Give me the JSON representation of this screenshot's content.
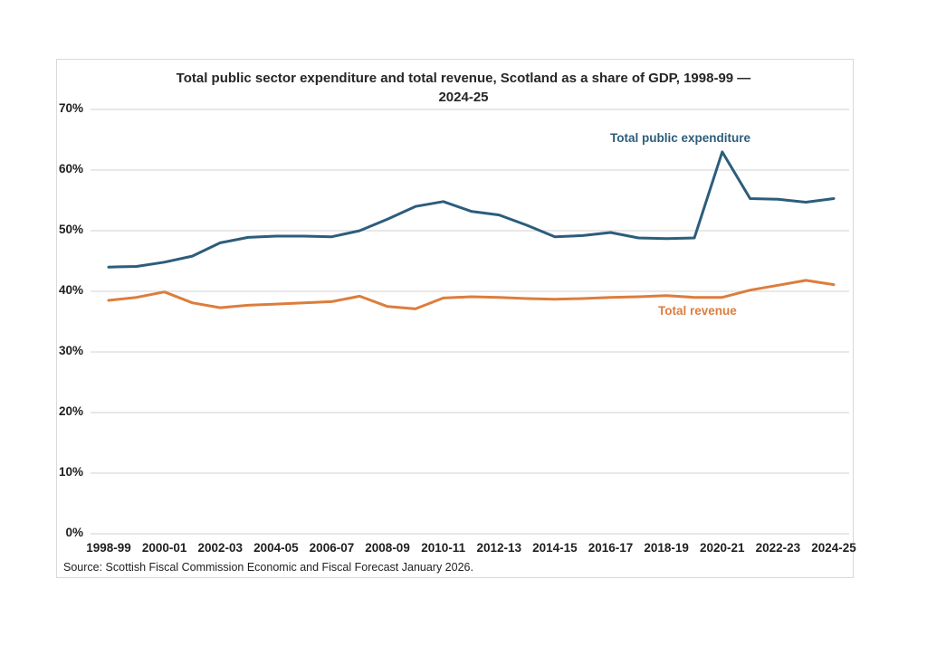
{
  "header": {
    "title_line1": "Total public sector expenditure and total revenue, Scotland as a share of GDP, 1998-99 —",
    "title_line2": "2024-25"
  },
  "source_note": "Source: Scottish Fiscal Commission Economic and Fiscal Forecast January 2026.",
  "colors": {
    "expenditure": "#2c5d7c",
    "revenue": "#dd7d3c",
    "grid": "#d9d9d9",
    "frame_border": "#d9d9d9",
    "tick_text": "#1f1f1f",
    "title_text": "#262626"
  },
  "chart_data": {
    "type": "line",
    "title": "Total public sector expenditure and total revenue, Scotland as a share of GDP, 1998-99 — 2024-25",
    "units": "% of GDP",
    "categories": [
      "1998-99",
      "1999-00",
      "2000-01",
      "2001-02",
      "2002-03",
      "2003-04",
      "2004-05",
      "2005-06",
      "2006-07",
      "2007-08",
      "2008-09",
      "2009-10",
      "2010-11",
      "2011-12",
      "2012-13",
      "2013-14",
      "2014-15",
      "2015-16",
      "2016-17",
      "2017-18",
      "2018-19",
      "2019-20",
      "2020-21",
      "2021-22",
      "2022-23",
      "2023-24",
      "2024-25"
    ],
    "x_axis_tick_labels": [
      "1998-99",
      "2000-01",
      "2002-03",
      "2004-05",
      "2006-07",
      "2008-09",
      "2010-11",
      "2012-13",
      "2014-15",
      "2016-17",
      "2018-19",
      "2020-21",
      "2022-23",
      "2024-25"
    ],
    "y_axis_tick_labels": [
      "0%",
      "10%",
      "20%",
      "30%",
      "40%",
      "50%",
      "60%",
      "70%"
    ],
    "ylim": [
      0,
      70
    ],
    "ytick_step": 10,
    "grid": "horizontal",
    "legend": "inline-series-labels",
    "series": [
      {
        "name": "Total public expenditure",
        "color": "#2c5d7c",
        "values": [
          44.0,
          44.1,
          44.8,
          45.8,
          48.0,
          48.9,
          49.1,
          49.1,
          49.0,
          50.0,
          51.9,
          54.0,
          54.8,
          53.2,
          52.6,
          50.9,
          49.0,
          49.2,
          49.7,
          48.8,
          48.7,
          48.8,
          63.0,
          55.3,
          55.2,
          54.7,
          55.3
        ]
      },
      {
        "name": "Total revenue",
        "color": "#dd7d3c",
        "values": [
          38.5,
          39.0,
          39.9,
          38.1,
          37.3,
          37.7,
          37.9,
          38.1,
          38.3,
          39.2,
          37.5,
          37.1,
          38.9,
          39.1,
          39.0,
          38.8,
          38.7,
          38.8,
          39.0,
          39.1,
          39.3,
          39.0,
          39.0,
          40.2,
          41.0,
          41.8,
          41.1
        ]
      }
    ]
  }
}
